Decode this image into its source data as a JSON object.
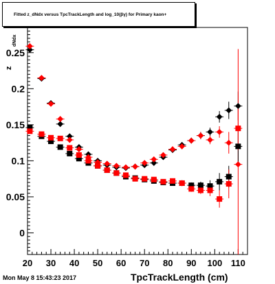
{
  "title": "Fitted z_dNdx versus TpcTrackLength and log_10(βγ) for Primary kaon+",
  "y_axis_label": {
    "main": "z",
    "sub": "dNdx"
  },
  "x_axis_title": "TpcTrackLength (cm)",
  "datestamp": "Mon May  8 15:43:23 2017",
  "colors": {
    "black_series": "#000000",
    "red_series": "#ff0000",
    "frame": "#000000"
  },
  "chart_data": {
    "type": "scatter",
    "xlim": [
      20,
      114
    ],
    "ylim": [
      -0.03,
      0.285
    ],
    "x_ticks": [
      20,
      30,
      40,
      50,
      60,
      70,
      80,
      90,
      100,
      110
    ],
    "y_ticks": [
      0,
      0.05,
      0.1,
      0.15,
      0.2,
      0.25
    ],
    "y_tick_labels": [
      "0",
      "0.05",
      "0.1",
      "0.15",
      "0.2",
      "0.25"
    ],
    "series": [
      {
        "marker": "diamond",
        "color": "#000000",
        "points": [
          {
            "x": 21,
            "y": 0.254,
            "err": 0.003
          },
          {
            "x": 26,
            "y": 0.214,
            "err": 0.003
          },
          {
            "x": 30,
            "y": 0.18,
            "err": 0.003
          },
          {
            "x": 34,
            "y": 0.151,
            "err": 0.003
          },
          {
            "x": 38,
            "y": 0.134,
            "err": 0.003
          },
          {
            "x": 42,
            "y": 0.119,
            "err": 0.003
          },
          {
            "x": 46,
            "y": 0.109,
            "err": 0.003
          },
          {
            "x": 50,
            "y": 0.1,
            "err": 0.003
          },
          {
            "x": 54,
            "y": 0.094,
            "err": 0.003
          },
          {
            "x": 58,
            "y": 0.091,
            "err": 0.003
          },
          {
            "x": 62,
            "y": 0.09,
            "err": 0.003
          },
          {
            "x": 66,
            "y": 0.092,
            "err": 0.003
          },
          {
            "x": 70,
            "y": 0.094,
            "err": 0.003
          },
          {
            "x": 74,
            "y": 0.097,
            "err": 0.003
          },
          {
            "x": 78,
            "y": 0.105,
            "err": 0.003
          },
          {
            "x": 82,
            "y": 0.115,
            "err": 0.004
          },
          {
            "x": 86,
            "y": 0.122,
            "err": 0.004
          },
          {
            "x": 90,
            "y": 0.128,
            "err": 0.004
          },
          {
            "x": 94,
            "y": 0.135,
            "err": 0.005
          },
          {
            "x": 98,
            "y": 0.14,
            "err": 0.006
          },
          {
            "x": 102,
            "y": 0.161,
            "err": 0.008
          },
          {
            "x": 106,
            "y": 0.17,
            "err": 0.012
          },
          {
            "x": 110,
            "y": 0.176,
            "err": 0.02
          }
        ]
      },
      {
        "marker": "diamond",
        "color": "#ff0000",
        "points": [
          {
            "x": 21,
            "y": 0.259,
            "err": 0.003
          },
          {
            "x": 26,
            "y": 0.215,
            "err": 0.003
          },
          {
            "x": 30,
            "y": 0.179,
            "err": 0.003
          },
          {
            "x": 34,
            "y": 0.158,
            "err": 0.003
          },
          {
            "x": 38,
            "y": 0.129,
            "err": 0.003
          },
          {
            "x": 42,
            "y": 0.116,
            "err": 0.003
          },
          {
            "x": 46,
            "y": 0.105,
            "err": 0.003
          },
          {
            "x": 50,
            "y": 0.098,
            "err": 0.003
          },
          {
            "x": 54,
            "y": 0.096,
            "err": 0.003
          },
          {
            "x": 58,
            "y": 0.093,
            "err": 0.003
          },
          {
            "x": 62,
            "y": 0.091,
            "err": 0.003
          },
          {
            "x": 66,
            "y": 0.092,
            "err": 0.003
          },
          {
            "x": 70,
            "y": 0.097,
            "err": 0.003
          },
          {
            "x": 74,
            "y": 0.102,
            "err": 0.003
          },
          {
            "x": 78,
            "y": 0.108,
            "err": 0.003
          },
          {
            "x": 82,
            "y": 0.116,
            "err": 0.004
          },
          {
            "x": 86,
            "y": 0.12,
            "err": 0.004
          },
          {
            "x": 90,
            "y": 0.128,
            "err": 0.004
          },
          {
            "x": 94,
            "y": 0.135,
            "err": 0.005
          },
          {
            "x": 98,
            "y": 0.129,
            "err": 0.006
          },
          {
            "x": 102,
            "y": 0.14,
            "err": 0.008
          },
          {
            "x": 106,
            "y": 0.125,
            "err": 0.015
          },
          {
            "x": 110,
            "y": 0.095,
            "err": 0.16
          }
        ]
      },
      {
        "marker": "square",
        "color": "#000000",
        "points": [
          {
            "x": 21,
            "y": 0.146,
            "err": 0.003
          },
          {
            "x": 26,
            "y": 0.134,
            "err": 0.003
          },
          {
            "x": 30,
            "y": 0.127,
            "err": 0.003
          },
          {
            "x": 34,
            "y": 0.119,
            "err": 0.003
          },
          {
            "x": 38,
            "y": 0.11,
            "err": 0.003
          },
          {
            "x": 42,
            "y": 0.103,
            "err": 0.003
          },
          {
            "x": 46,
            "y": 0.097,
            "err": 0.003
          },
          {
            "x": 50,
            "y": 0.093,
            "err": 0.003
          },
          {
            "x": 54,
            "y": 0.087,
            "err": 0.003
          },
          {
            "x": 58,
            "y": 0.083,
            "err": 0.003
          },
          {
            "x": 62,
            "y": 0.078,
            "err": 0.003
          },
          {
            "x": 66,
            "y": 0.076,
            "err": 0.003
          },
          {
            "x": 70,
            "y": 0.074,
            "err": 0.003
          },
          {
            "x": 74,
            "y": 0.072,
            "err": 0.003
          },
          {
            "x": 78,
            "y": 0.07,
            "err": 0.003
          },
          {
            "x": 82,
            "y": 0.069,
            "err": 0.003
          },
          {
            "x": 86,
            "y": 0.069,
            "err": 0.004
          },
          {
            "x": 90,
            "y": 0.066,
            "err": 0.004
          },
          {
            "x": 94,
            "y": 0.066,
            "err": 0.005
          },
          {
            "x": 98,
            "y": 0.065,
            "err": 0.008
          },
          {
            "x": 102,
            "y": 0.071,
            "err": 0.012
          },
          {
            "x": 106,
            "y": 0.078,
            "err": 0.015
          },
          {
            "x": 110,
            "y": 0.12,
            "err": 0.025
          }
        ]
      },
      {
        "marker": "square",
        "color": "#ff0000",
        "points": [
          {
            "x": 21,
            "y": 0.141,
            "err": 0.003
          },
          {
            "x": 26,
            "y": 0.137,
            "err": 0.003
          },
          {
            "x": 30,
            "y": 0.132,
            "err": 0.003
          },
          {
            "x": 34,
            "y": 0.131,
            "err": 0.003
          },
          {
            "x": 38,
            "y": 0.118,
            "err": 0.003
          },
          {
            "x": 42,
            "y": 0.108,
            "err": 0.003
          },
          {
            "x": 46,
            "y": 0.1,
            "err": 0.003
          },
          {
            "x": 50,
            "y": 0.093,
            "err": 0.003
          },
          {
            "x": 54,
            "y": 0.087,
            "err": 0.003
          },
          {
            "x": 58,
            "y": 0.083,
            "err": 0.003
          },
          {
            "x": 62,
            "y": 0.08,
            "err": 0.003
          },
          {
            "x": 66,
            "y": 0.075,
            "err": 0.003
          },
          {
            "x": 70,
            "y": 0.075,
            "err": 0.003
          },
          {
            "x": 74,
            "y": 0.074,
            "err": 0.003
          },
          {
            "x": 78,
            "y": 0.071,
            "err": 0.003
          },
          {
            "x": 82,
            "y": 0.072,
            "err": 0.003
          },
          {
            "x": 86,
            "y": 0.069,
            "err": 0.004
          },
          {
            "x": 90,
            "y": 0.061,
            "err": 0.004
          },
          {
            "x": 94,
            "y": 0.059,
            "err": 0.005
          },
          {
            "x": 98,
            "y": 0.059,
            "err": 0.008
          },
          {
            "x": 102,
            "y": 0.047,
            "err": 0.012
          },
          {
            "x": 106,
            "y": 0.068,
            "err": 0.02
          },
          {
            "x": 110,
            "y": 0.145,
            "err": 0.03
          }
        ]
      }
    ]
  }
}
